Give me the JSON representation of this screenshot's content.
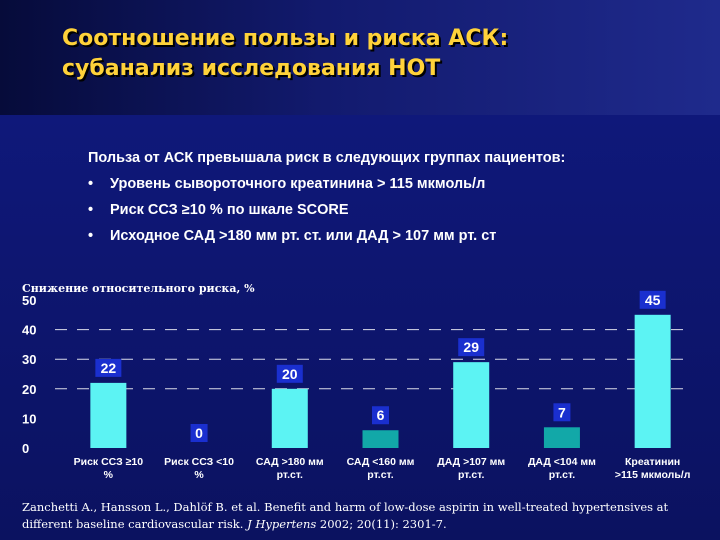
{
  "title": {
    "line1": "Соотношение пользы и риска АСК:",
    "line2": "субанализ исследования НОТ"
  },
  "intro": "Польза от АСК превышала риск в следующих группах пациентов:",
  "bullets": [
    "Уровень сывороточного креатинина > 115 мкмоль/л",
    "Риск ССЗ ≥10 % по шкале SCORE",
    "Исходное САД >180 мм рт. ст. или ДАД  > 107 мм рт. ст"
  ],
  "chart_data": {
    "type": "bar",
    "ylabel": "Снижение относительного риска, %",
    "ylim": [
      0,
      50
    ],
    "yticks": [
      0,
      10,
      20,
      30,
      40,
      50
    ],
    "gridlines": "dashed at 20, 30, 40",
    "categories": [
      [
        "Риск ССЗ ≥10",
        "%"
      ],
      [
        "Риск ССЗ <10",
        "%"
      ],
      [
        "САД >180 мм",
        "рт.ст."
      ],
      [
        "САД <160 мм",
        "рт.ст."
      ],
      [
        "ДАД >107 мм",
        "рт.ст."
      ],
      [
        "ДАД <104 мм",
        "рт.ст."
      ],
      [
        "Креатинин",
        ">115 мкмоль/л"
      ]
    ],
    "values": [
      22,
      0,
      20,
      6,
      29,
      7,
      45
    ],
    "data_labels": [
      "22",
      "0",
      "20",
      "6",
      "29",
      "7",
      "45"
    ],
    "colors": [
      "#5cf3f3",
      "#5cf3f3",
      "#5cf3f3",
      "#12a8a8",
      "#5cf3f3",
      "#12a8a8",
      "#5cf3f3"
    ],
    "label_bg": "#1a2fcf",
    "axis_text_color": "#ffffff"
  },
  "citation": {
    "text": "Zanchetti A., Hansson L., Dahlöf B. et al. Benefit and harm of low-dose aspirin in well-treated hypertensives at different baseline cardiovascular risk. ",
    "journal": "J Hypertens",
    "details": " 2002; 20(11): 2301-7."
  }
}
